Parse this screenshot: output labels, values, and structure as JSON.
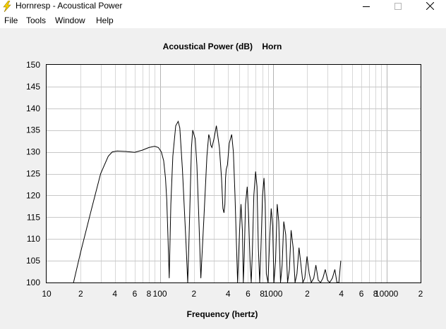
{
  "window": {
    "title": "Hornresp - Acoustical Power",
    "icon": "lightning-bolt-icon",
    "controls": [
      "minimize-icon",
      "maximize-icon",
      "close-icon"
    ]
  },
  "menu": {
    "file": "File",
    "tools": "Tools",
    "window": "Window",
    "help": "Help"
  },
  "chart_data": {
    "type": "line",
    "title": "Acoustical Power (dB)    Horn",
    "xlabel": "Frequency (hertz)",
    "ylabel": "",
    "xscale": "log",
    "xlim": [
      10,
      20000
    ],
    "ylim": [
      100,
      150
    ],
    "grid": true,
    "line_color": "#000000",
    "y_ticks": [
      "150",
      "145",
      "140",
      "135",
      "130",
      "125",
      "120",
      "115",
      "110",
      "105",
      "100"
    ],
    "x_ticks": [
      {
        "value": 10,
        "label": "10"
      },
      {
        "value": 20,
        "label": "2"
      },
      {
        "value": 40,
        "label": "4"
      },
      {
        "value": 60,
        "label": "6"
      },
      {
        "value": 80,
        "label": "8"
      },
      {
        "value": 100,
        "label": "100"
      },
      {
        "value": 200,
        "label": "2"
      },
      {
        "value": 400,
        "label": "4"
      },
      {
        "value": 600,
        "label": "6"
      },
      {
        "value": 800,
        "label": "8"
      },
      {
        "value": 1000,
        "label": "1000"
      },
      {
        "value": 2000,
        "label": "2"
      },
      {
        "value": 4000,
        "label": "4"
      },
      {
        "value": 6000,
        "label": "6"
      },
      {
        "value": 8000,
        "label": "8"
      },
      {
        "value": 10000,
        "label": "10000"
      },
      {
        "value": 20000,
        "label": "2"
      }
    ],
    "series": [
      {
        "x": [
          17.3,
          20,
          25,
          30,
          35,
          38,
          42,
          50,
          60,
          70,
          80,
          90,
          97,
          103,
          108,
          112,
          115,
          118,
          121,
          125,
          130,
          138,
          145,
          150,
          158,
          165,
          170,
          176,
          180,
          185,
          190,
          195,
          205,
          212,
          220,
          230,
          245,
          260,
          270,
          277,
          282,
          288,
          300,
          315,
          335,
          350,
          360,
          368,
          375,
          380,
          385,
          395,
          410,
          430,
          445,
          460,
          475,
          485,
          495,
          505,
          520,
          535,
          545,
          555,
          570,
          590,
          605,
          625,
          640,
          655,
          675,
          700,
          720,
          740,
          760,
          780,
          805,
          830,
          850,
          870,
          900,
          930,
          960,
          990,
          1015,
          1050,
          1085,
          1120,
          1160,
          1200,
          1240,
          1290,
          1340,
          1390,
          1440,
          1500,
          1560,
          1620,
          1690,
          1760,
          1830,
          1900,
          1990,
          2080,
          2170,
          2280,
          2380,
          2500,
          2620,
          2750,
          2880,
          3020,
          3160,
          3330,
          3500,
          3650,
          3800,
          3950
        ],
        "y": [
          100,
          107,
          117,
          125,
          129,
          130,
          130.2,
          130.1,
          129.9,
          130.4,
          131,
          131.3,
          131,
          130,
          128,
          124,
          119,
          110,
          101,
          118,
          129,
          136,
          137,
          135.5,
          126,
          116,
          109,
          100,
          108,
          120,
          131,
          135,
          133,
          127,
          116,
          101,
          115,
          129,
          134,
          133,
          131.5,
          131,
          133,
          136,
          131,
          124,
          117,
          116,
          118,
          124,
          126,
          127,
          132,
          134,
          130,
          120,
          108,
          100,
          106,
          112,
          118,
          112,
          100,
          106,
          118,
          122,
          116,
          105,
          100,
          107,
          120,
          125.5,
          122,
          108,
          100,
          108,
          120,
          124,
          118,
          102,
          100,
          110,
          117,
          113,
          100,
          105,
          118,
          114,
          100,
          104,
          114,
          111,
          100,
          103,
          112,
          108,
          100,
          102,
          108,
          104,
          100,
          101,
          106,
          102,
          100,
          101,
          104,
          100.5,
          100,
          101,
          103,
          100.5,
          100,
          101,
          103,
          100,
          100,
          105
        ]
      }
    ]
  }
}
